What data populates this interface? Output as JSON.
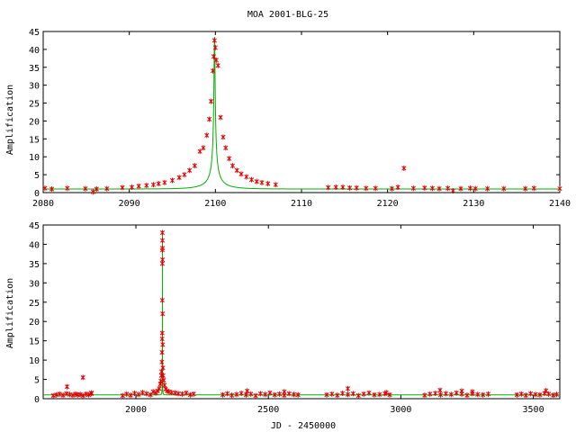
{
  "chart_data": [
    {
      "type": "scatter",
      "title": "MOA 2001-BLG-25",
      "xlabel": "",
      "ylabel": "Amplification",
      "xlim": [
        2080,
        2140
      ],
      "ylim": [
        0,
        45
      ],
      "xticks": [
        2080,
        2090,
        2100,
        2110,
        2120,
        2130,
        2140
      ],
      "yticks": [
        0,
        5,
        10,
        15,
        20,
        25,
        30,
        35,
        40,
        45
      ],
      "model": {
        "t0": 2099.9,
        "tE": 3.0,
        "u0": 0.023,
        "color": "#00b000"
      },
      "point_color": "#e00000",
      "series": [
        {
          "x": [
            2080.2,
            2081.0,
            2082.8,
            2084.9,
            2085.8,
            2086.2,
            2087.4,
            2089.2,
            2090.3,
            2091.1,
            2092.0,
            2092.8,
            2093.4,
            2094.1,
            2095.0,
            2095.8,
            2096.4,
            2097.0,
            2097.6,
            2098.2,
            2098.6,
            2099.0,
            2099.3,
            2099.5,
            2099.7,
            2099.8,
            2099.9,
            2100.0,
            2100.1,
            2100.3,
            2100.6,
            2100.9,
            2101.2,
            2101.6,
            2102.0,
            2102.5,
            2103.0,
            2103.6,
            2104.2,
            2104.8,
            2105.4,
            2106.1,
            2107.0,
            2113.1,
            2114.0,
            2114.8,
            2115.6,
            2116.4,
            2117.5,
            2118.6,
            2120.5,
            2121.2,
            2121.9,
            2123.0,
            2124.3,
            2125.2,
            2126.0,
            2127.0,
            2127.6,
            2128.5,
            2129.6,
            2130.2,
            2131.6,
            2133.5,
            2136.0,
            2137.0,
            2140.0
          ],
          "y": [
            1.2,
            1.0,
            1.2,
            1.1,
            0.2,
            1.0,
            1.1,
            1.4,
            1.5,
            1.8,
            2.0,
            2.2,
            2.5,
            2.8,
            3.4,
            4.2,
            5.0,
            6.2,
            7.5,
            11.5,
            12.5,
            16.0,
            20.5,
            25.5,
            34.0,
            38.0,
            42.5,
            40.5,
            37.0,
            35.5,
            21.0,
            15.5,
            12.5,
            9.5,
            7.5,
            6.2,
            5.2,
            4.4,
            3.6,
            3.1,
            2.8,
            2.5,
            2.2,
            1.4,
            1.5,
            1.5,
            1.3,
            1.3,
            1.2,
            1.2,
            1.1,
            1.5,
            6.8,
            1.2,
            1.3,
            1.2,
            1.1,
            1.2,
            0.5,
            1.1,
            1.2,
            1.1,
            1.1,
            1.1,
            1.1,
            1.2,
            1.1
          ]
        }
      ]
    },
    {
      "type": "scatter",
      "title": "",
      "xlabel": "JD - 2450000",
      "ylabel": "Amplification",
      "xlim": [
        1650,
        3600
      ],
      "ylim": [
        0,
        45
      ],
      "xticks": [
        2000,
        2500,
        3000,
        3500
      ],
      "yticks": [
        0,
        5,
        10,
        15,
        20,
        25,
        30,
        35,
        40,
        45
      ],
      "model": {
        "t0": 2099.9,
        "tE": 3.0,
        "u0": 0.023,
        "color": "#00b000"
      },
      "point_color": "#e00000",
      "series": [
        {
          "x": [
            1688,
            1700,
            1712,
            1725,
            1738,
            1750,
            1762,
            1772,
            1780,
            1790,
            1800,
            1812,
            1822,
            1832,
            1740,
            1800,
            1832,
            1950,
            1965,
            1980,
            1995,
            2010,
            2025,
            2040,
            2055,
            2065,
            2075,
            2082,
            2088,
            2092,
            2094,
            2096,
            2097,
            2098,
            2098.6,
            2099,
            2099.3,
            2099.6,
            2099.8,
            2099.9,
            2100,
            2100.1,
            2100.3,
            2100.6,
            2100.9,
            2101.3,
            2102,
            2103,
            2105,
            2108,
            2112,
            2118,
            2125,
            2135,
            2148,
            2160,
            2175,
            2190,
            2205,
            2218,
            2328,
            2345,
            2362,
            2380,
            2398,
            2416,
            2434,
            2452,
            2470,
            2488,
            2506,
            2524,
            2542,
            2560,
            2578,
            2596,
            2612,
            2420,
            2560,
            2720,
            2740,
            2760,
            2780,
            2800,
            2820,
            2840,
            2860,
            2880,
            2900,
            2920,
            2940,
            2958,
            2800,
            2945,
            3090,
            3110,
            3130,
            3150,
            3170,
            3190,
            3210,
            3230,
            3250,
            3270,
            3290,
            3310,
            3330,
            3148,
            3230,
            3270,
            3438,
            3455,
            3472,
            3490,
            3508,
            3525,
            3542,
            3558,
            3575,
            3588,
            3548
          ],
          "y": [
            0.8,
            1.0,
            1.2,
            0.9,
            1.3,
            1.1,
            0.9,
            1.2,
            1.0,
            1.1,
            0.8,
            1.2,
            1.0,
            1.3,
            3.1,
            5.5,
            1.5,
            0.8,
            1.2,
            0.9,
            1.4,
            1.1,
            1.6,
            1.3,
            1.0,
            1.8,
            1.5,
            2.0,
            2.6,
            3.8,
            4.6,
            6.0,
            7.0,
            9.5,
            12.0,
            15.5,
            17.0,
            25.5,
            35.0,
            38.5,
            43.0,
            41.0,
            39.0,
            36.0,
            22.0,
            14.0,
            8.0,
            6.0,
            4.8,
            3.5,
            2.5,
            2.0,
            1.8,
            1.6,
            1.5,
            1.3,
            1.2,
            1.5,
            1.0,
            1.2,
            1.0,
            1.3,
            0.9,
            1.1,
            1.4,
            1.0,
            1.2,
            0.8,
            1.3,
            1.1,
            1.5,
            1.0,
            1.2,
            0.9,
            1.3,
            1.1,
            1.0,
            2.0,
            1.8,
            1.0,
            1.2,
            0.9,
            1.4,
            1.1,
            1.3,
            0.8,
            1.2,
            1.5,
            1.0,
            1.1,
            1.3,
            1.0,
            2.6,
            1.6,
            0.9,
            1.2,
            1.4,
            1.0,
            1.3,
            1.1,
            1.5,
            1.2,
            0.9,
            1.3,
            1.1,
            1.0,
            1.2,
            2.2,
            2.0,
            1.8,
            1.0,
            1.2,
            0.9,
            1.3,
            1.1,
            1.0,
            1.4,
            1.2,
            0.9,
            1.1,
            2.1
          ]
        }
      ]
    }
  ]
}
